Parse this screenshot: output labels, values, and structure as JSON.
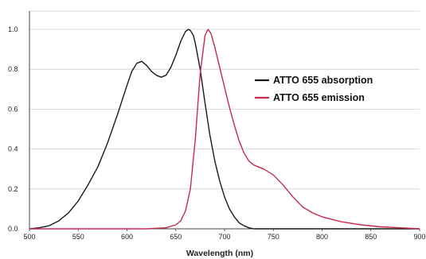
{
  "chart_data": {
    "type": "line",
    "title": "",
    "xlabel": "Wavelength (nm)",
    "ylabel": "",
    "xlim": [
      500,
      900
    ],
    "ylim": [
      0,
      1.1
    ],
    "x_ticks": [
      500,
      550,
      600,
      650,
      700,
      750,
      800,
      850,
      900
    ],
    "y_ticks": [
      0.0,
      0.2,
      0.4,
      0.6,
      0.8,
      1.0
    ],
    "x_tick_labels": [
      "500",
      "550",
      "600",
      "650",
      "700",
      "750",
      "800",
      "850",
      "900"
    ],
    "y_tick_labels": [
      "0.0",
      "0.2",
      "0.4",
      "0.6",
      "0.8",
      "1.0"
    ],
    "grid": true,
    "legend_position": "center-right",
    "series": [
      {
        "name": "ATTO 655 absorption",
        "color": "#1a1a1a",
        "x": [
          500,
          510,
          520,
          530,
          540,
          550,
          560,
          570,
          580,
          590,
          600,
          605,
          610,
          615,
          620,
          625,
          630,
          635,
          640,
          645,
          650,
          655,
          660,
          663,
          665,
          668,
          670,
          675,
          680,
          685,
          690,
          695,
          700,
          705,
          710,
          715,
          720,
          725,
          730
        ],
        "y": [
          0.0,
          0.005,
          0.015,
          0.04,
          0.08,
          0.14,
          0.22,
          0.31,
          0.43,
          0.57,
          0.72,
          0.79,
          0.83,
          0.84,
          0.82,
          0.79,
          0.77,
          0.76,
          0.77,
          0.81,
          0.87,
          0.94,
          0.99,
          1.0,
          0.995,
          0.97,
          0.93,
          0.8,
          0.63,
          0.47,
          0.34,
          0.24,
          0.16,
          0.1,
          0.06,
          0.03,
          0.015,
          0.005,
          0.0
        ]
      },
      {
        "name": "ATTO 655 emission",
        "color": "#c8294e",
        "x": [
          600,
          620,
          640,
          650,
          655,
          660,
          665,
          670,
          675,
          680,
          683,
          686,
          690,
          695,
          700,
          705,
          710,
          715,
          720,
          725,
          730,
          740,
          750,
          760,
          770,
          780,
          790,
          800,
          820,
          840,
          860,
          880,
          900
        ],
        "y": [
          0.0,
          0.0,
          0.005,
          0.02,
          0.04,
          0.09,
          0.2,
          0.45,
          0.78,
          0.97,
          1.0,
          0.98,
          0.91,
          0.81,
          0.71,
          0.61,
          0.52,
          0.44,
          0.38,
          0.34,
          0.32,
          0.3,
          0.27,
          0.22,
          0.16,
          0.11,
          0.08,
          0.06,
          0.035,
          0.02,
          0.01,
          0.005,
          0.0
        ]
      }
    ]
  }
}
